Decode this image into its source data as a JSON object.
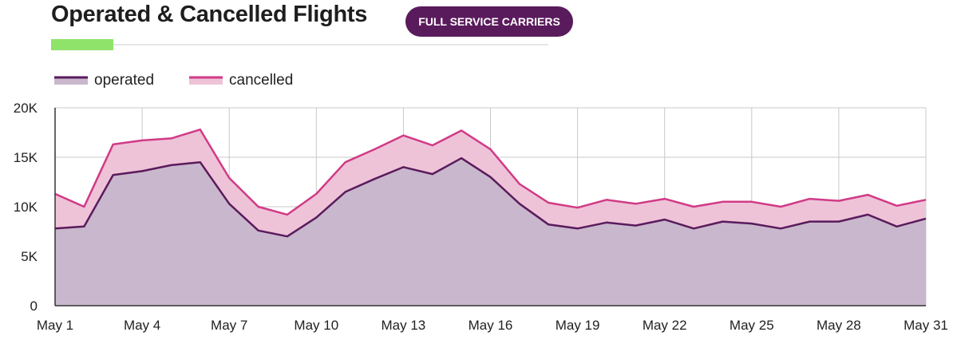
{
  "header": {
    "title": "Operated & Cancelled Flights",
    "badge": "FULL SERVICE CARRIERS"
  },
  "colors": {
    "operated_line": "#5a1b5c",
    "operated_fill": "#c9b8cd",
    "cancelled_line": "#d13a86",
    "cancelled_fill": "#eec3d8",
    "accent": "#8fe26a",
    "grid": "#c8c8c8"
  },
  "chart_data": {
    "type": "area",
    "stacked": true,
    "x": [
      "May 1",
      "May 2",
      "May 3",
      "May 4",
      "May 5",
      "May 6",
      "May 7",
      "May 8",
      "May 9",
      "May 10",
      "May 11",
      "May 12",
      "May 13",
      "May 14",
      "May 15",
      "May 16",
      "May 17",
      "May 18",
      "May 19",
      "May 20",
      "May 21",
      "May 22",
      "May 23",
      "May 24",
      "May 25",
      "May 26",
      "May 27",
      "May 28",
      "May 29",
      "May 30",
      "May 31"
    ],
    "x_tick_labels": [
      "May 1",
      "May 4",
      "May 7",
      "May 10",
      "May 13",
      "May 16",
      "May 19",
      "May 22",
      "May 25",
      "May 28",
      "May 31"
    ],
    "y_tick_labels": [
      "0",
      "5K",
      "10K",
      "15K",
      "20K"
    ],
    "ylim": [
      0,
      20000
    ],
    "grid": true,
    "legend_position": "top-left",
    "series": [
      {
        "name": "operated",
        "values": [
          7800,
          8000,
          13200,
          13600,
          14200,
          14500,
          10300,
          7600,
          7000,
          8900,
          11500,
          12800,
          14000,
          13300,
          14900,
          13000,
          10300,
          8200,
          7800,
          8400,
          8100,
          8700,
          7800,
          8500,
          8300,
          7800,
          8500,
          8500,
          9200,
          8000,
          8800
        ]
      },
      {
        "name": "cancelled",
        "values": [
          3500,
          2000,
          3100,
          3100,
          2700,
          3300,
          2600,
          2400,
          2200,
          2400,
          3000,
          3000,
          3200,
          2900,
          2800,
          2800,
          2000,
          2200,
          2100,
          2300,
          2200,
          2100,
          2200,
          2000,
          2200,
          2200,
          2300,
          2100,
          2000,
          2100,
          1900
        ]
      }
    ]
  }
}
